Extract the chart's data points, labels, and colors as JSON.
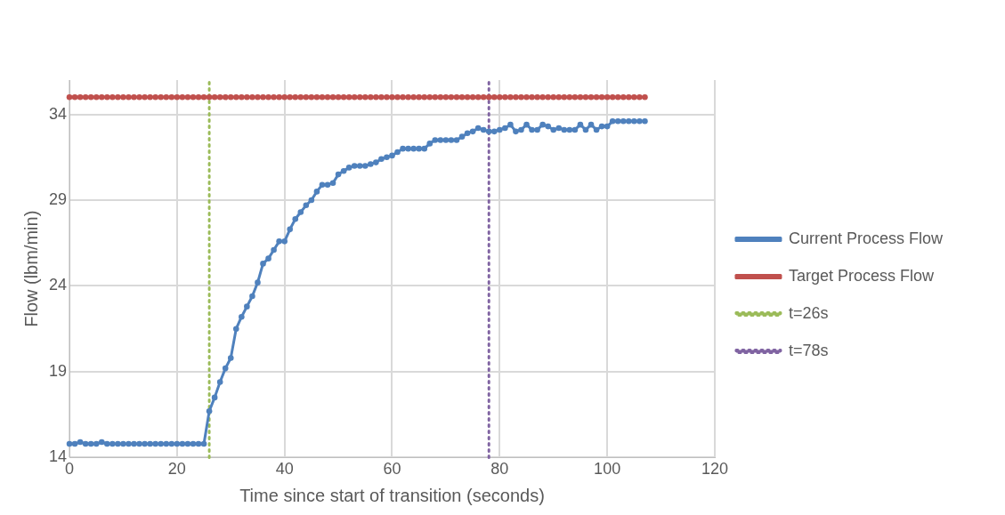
{
  "chart_data": {
    "type": "line",
    "xlabel": "Time since start of transition (seconds)",
    "ylabel": "Flow (lbm/min)",
    "xlim": [
      0,
      120
    ],
    "xticks": [
      0,
      20,
      40,
      60,
      80,
      100,
      120
    ],
    "ylim": [
      14,
      36
    ],
    "yticks": [
      14,
      19,
      24,
      29,
      34
    ],
    "grid": true,
    "legend": "right",
    "marker": "circle",
    "series": [
      {
        "name": "Current Process Flow",
        "color": "#4f81bd",
        "x": [
          0,
          1,
          2,
          3,
          4,
          5,
          6,
          7,
          8,
          9,
          10,
          11,
          12,
          13,
          14,
          15,
          16,
          17,
          18,
          19,
          20,
          21,
          22,
          23,
          24,
          25,
          26,
          27,
          28,
          29,
          30,
          31,
          32,
          33,
          34,
          35,
          36,
          37,
          38,
          39,
          40,
          41,
          42,
          43,
          44,
          45,
          46,
          47,
          48,
          49,
          50,
          51,
          52,
          53,
          54,
          55,
          56,
          57,
          58,
          59,
          60,
          61,
          62,
          63,
          64,
          65,
          66,
          67,
          68,
          69,
          70,
          71,
          72,
          73,
          74,
          75,
          76,
          77,
          78,
          79,
          80,
          81,
          82,
          83,
          84,
          85,
          86,
          87,
          88,
          89,
          90,
          91,
          92,
          93,
          94,
          95,
          96,
          97,
          98,
          99,
          100,
          101,
          102,
          103,
          104,
          105,
          106,
          107
        ],
        "values": [
          14.8,
          14.8,
          14.9,
          14.8,
          14.8,
          14.8,
          14.9,
          14.8,
          14.8,
          14.8,
          14.8,
          14.8,
          14.8,
          14.8,
          14.8,
          14.8,
          14.8,
          14.8,
          14.8,
          14.8,
          14.8,
          14.8,
          14.8,
          14.8,
          14.8,
          14.8,
          16.7,
          17.5,
          18.4,
          19.2,
          19.8,
          21.5,
          22.2,
          22.8,
          23.4,
          24.2,
          25.3,
          25.6,
          26.1,
          26.6,
          26.6,
          27.3,
          27.9,
          28.3,
          28.7,
          29.0,
          29.5,
          29.9,
          29.9,
          30.0,
          30.5,
          30.7,
          30.9,
          31.0,
          31.0,
          31.0,
          31.1,
          31.2,
          31.4,
          31.5,
          31.6,
          31.8,
          32.0,
          32.0,
          32.0,
          32.0,
          32.0,
          32.3,
          32.5,
          32.5,
          32.5,
          32.5,
          32.5,
          32.7,
          32.9,
          33.0,
          33.2,
          33.1,
          33.0,
          33.0,
          33.1,
          33.2,
          33.4,
          33.0,
          33.1,
          33.4,
          33.1,
          33.1,
          33.4,
          33.3,
          33.1,
          33.2,
          33.1,
          33.1,
          33.1,
          33.4,
          33.1,
          33.4,
          33.1,
          33.3,
          33.3,
          33.6,
          33.6,
          33.6,
          33.6,
          33.6,
          33.6,
          33.6
        ]
      },
      {
        "name": "Target Process Flow",
        "color": "#c0504d",
        "x": [
          0,
          1,
          2,
          3,
          4,
          5,
          6,
          7,
          8,
          9,
          10,
          11,
          12,
          13,
          14,
          15,
          16,
          17,
          18,
          19,
          20,
          21,
          22,
          23,
          24,
          25,
          26,
          27,
          28,
          29,
          30,
          31,
          32,
          33,
          34,
          35,
          36,
          37,
          38,
          39,
          40,
          41,
          42,
          43,
          44,
          45,
          46,
          47,
          48,
          49,
          50,
          51,
          52,
          53,
          54,
          55,
          56,
          57,
          58,
          59,
          60,
          61,
          62,
          63,
          64,
          65,
          66,
          67,
          68,
          69,
          70,
          71,
          72,
          73,
          74,
          75,
          76,
          77,
          78,
          79,
          80,
          81,
          82,
          83,
          84,
          85,
          86,
          87,
          88,
          89,
          90,
          91,
          92,
          93,
          94,
          95,
          96,
          97,
          98,
          99,
          100,
          101,
          102,
          103,
          104,
          105,
          106,
          107
        ],
        "values": [
          35,
          35,
          35,
          35,
          35,
          35,
          35,
          35,
          35,
          35,
          35,
          35,
          35,
          35,
          35,
          35,
          35,
          35,
          35,
          35,
          35,
          35,
          35,
          35,
          35,
          35,
          35,
          35,
          35,
          35,
          35,
          35,
          35,
          35,
          35,
          35,
          35,
          35,
          35,
          35,
          35,
          35,
          35,
          35,
          35,
          35,
          35,
          35,
          35,
          35,
          35,
          35,
          35,
          35,
          35,
          35,
          35,
          35,
          35,
          35,
          35,
          35,
          35,
          35,
          35,
          35,
          35,
          35,
          35,
          35,
          35,
          35,
          35,
          35,
          35,
          35,
          35,
          35,
          35,
          35,
          35,
          35,
          35,
          35,
          35,
          35,
          35,
          35,
          35,
          35,
          35,
          35,
          35,
          35,
          35,
          35,
          35,
          35,
          35,
          35,
          35,
          35,
          35,
          35,
          35,
          35,
          35,
          35
        ]
      },
      {
        "name": "t=26s",
        "color": "#9bbb59",
        "x": [
          26,
          26
        ],
        "values": [
          14,
          36
        ],
        "marker": "none",
        "line_style": "dotted"
      },
      {
        "name": "t=78s",
        "color": "#8064a2",
        "x": [
          78,
          78
        ],
        "values": [
          14,
          36
        ],
        "marker": "none",
        "line_style": "dotted"
      }
    ]
  }
}
